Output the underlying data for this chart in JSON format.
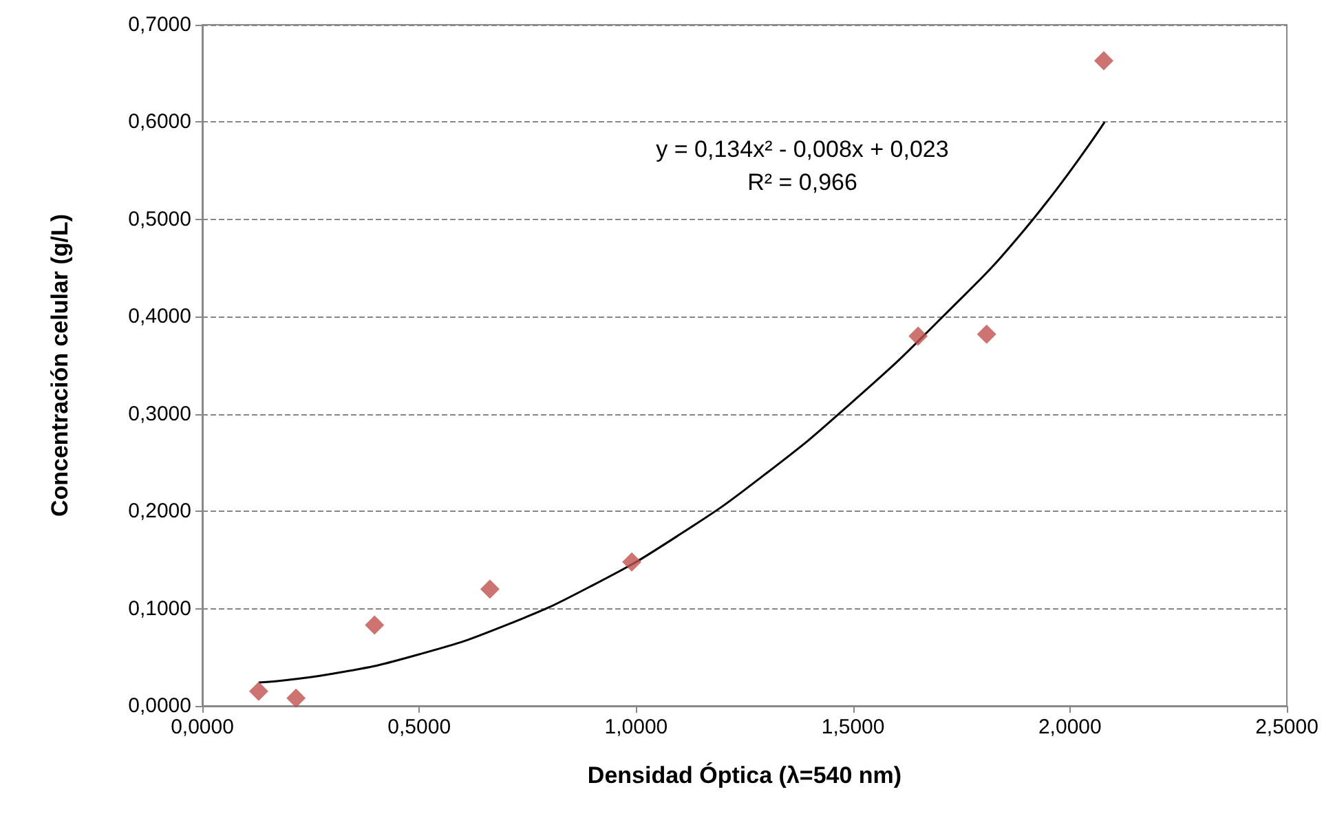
{
  "chart_data": {
    "type": "scatter",
    "xlabel": "Densidad Óptica (λ=540 nm)",
    "ylabel": "Concentración celular (g/L)",
    "series": [
      {
        "color": "#c0504d",
        "marker": "diamond",
        "x": [
          0.13,
          0.216,
          0.397,
          0.663,
          0.99,
          1.65,
          1.808,
          2.078
        ],
        "values": [
          0.015,
          0.008,
          0.083,
          0.12,
          0.148,
          0.38,
          0.382,
          0.663
        ]
      },
      {
        "type": "line",
        "color": "#000000",
        "marker": "none",
        "line_style": "solid",
        "x": [
          0.13,
          0.3,
          0.5,
          0.7,
          0.9,
          1.1,
          1.3,
          1.5,
          1.7,
          1.9,
          2.08
        ],
        "values": [
          0.024,
          0.033,
          0.053,
          0.083,
          0.124,
          0.176,
          0.239,
          0.313,
          0.397,
          0.492,
          0.6
        ]
      }
    ],
    "annotations": [
      "y = 0,134x² - 0,008x + 0,023",
      "R² = 0,966"
    ],
    "xlim": [
      0,
      2.5
    ],
    "xticks": [
      {
        "value": 0,
        "label": "0,0000"
      },
      {
        "value": 0.5,
        "label": "0,5000"
      },
      {
        "value": 1,
        "label": "1,0000"
      },
      {
        "value": 1.5,
        "label": "1,5000"
      },
      {
        "value": 2,
        "label": "2,0000"
      },
      {
        "value": 2.5,
        "label": "2,5000"
      }
    ],
    "ylim": [
      0,
      0.7
    ],
    "yticks": [
      {
        "value": 0,
        "label": "0,0000"
      },
      {
        "value": 0.1,
        "label": "0,1000"
      },
      {
        "value": 0.2,
        "label": "0,2000"
      },
      {
        "value": 0.3,
        "label": "0,3000"
      },
      {
        "value": 0.4,
        "label": "0,4000"
      },
      {
        "value": 0.5,
        "label": "0,5000"
      },
      {
        "value": 0.6,
        "label": "0,6000"
      },
      {
        "value": 0.7,
        "label": "0,7000"
      }
    ],
    "grid": "y"
  }
}
